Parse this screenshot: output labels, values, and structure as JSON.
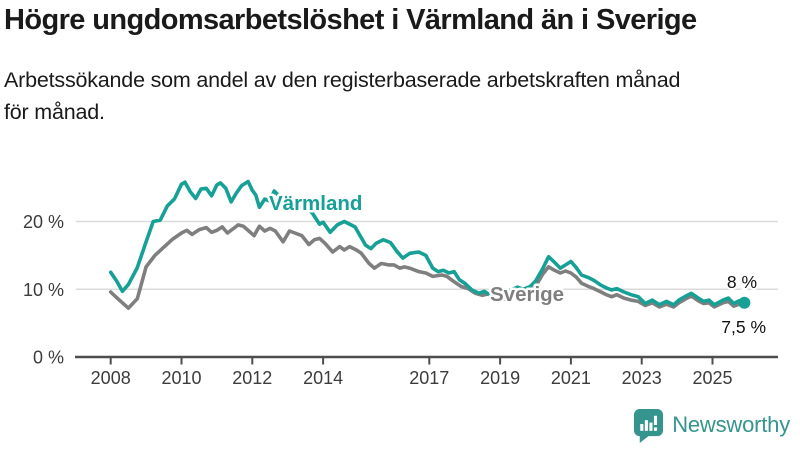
{
  "header": {
    "title": "Högre ungdomsarbetslöshet i Värmland än i Sverige",
    "subtitle": "Arbetssökande som andel av den registerbaserade arbetskraften månad\nför månad."
  },
  "chart_data": {
    "type": "line",
    "title": "Högre ungdomsarbetslöshet i Värmland än i Sverige",
    "subtitle": "Arbetssökande som andel av den registerbaserade arbetskraften månad för månad.",
    "xlabel": "",
    "ylabel": "",
    "grid": "horizontal-only",
    "legend_position": "inline-labels",
    "xlim": [
      2008,
      2026.9
    ],
    "ylim": [
      0,
      28.5
    ],
    "x_ticks": [
      "2008",
      "2010",
      "2012",
      "2014",
      "2017",
      "2019",
      "2021",
      "2023",
      "2025"
    ],
    "y_ticks": [
      {
        "label": "20 %",
        "value": 20
      },
      {
        "label": "10 %",
        "value": 10
      },
      {
        "label": "0 %",
        "value": 0
      }
    ],
    "series": [
      {
        "name": "Sverige",
        "color": "#7F7F7F",
        "end_annotation": "7,5 %",
        "end_dot": false,
        "points": [
          [
            2008.0,
            9.6
          ],
          [
            2008.2,
            8.6
          ],
          [
            2008.5,
            7.2
          ],
          [
            2008.75,
            8.6
          ],
          [
            2009.0,
            13.3
          ],
          [
            2009.25,
            15.0
          ],
          [
            2009.5,
            16.2
          ],
          [
            2009.75,
            17.4
          ],
          [
            2010.0,
            18.3
          ],
          [
            2010.15,
            18.7
          ],
          [
            2010.3,
            18.1
          ],
          [
            2010.5,
            18.8
          ],
          [
            2010.7,
            19.1
          ],
          [
            2010.85,
            18.4
          ],
          [
            2011.0,
            18.7
          ],
          [
            2011.15,
            19.2
          ],
          [
            2011.3,
            18.3
          ],
          [
            2011.45,
            18.9
          ],
          [
            2011.6,
            19.5
          ],
          [
            2011.75,
            19.3
          ],
          [
            2011.9,
            18.6
          ],
          [
            2012.05,
            17.9
          ],
          [
            2012.2,
            19.3
          ],
          [
            2012.35,
            18.6
          ],
          [
            2012.5,
            19.0
          ],
          [
            2012.65,
            18.6
          ],
          [
            2012.87,
            17.0
          ],
          [
            2013.05,
            18.6
          ],
          [
            2013.2,
            18.3
          ],
          [
            2013.4,
            17.9
          ],
          [
            2013.6,
            16.6
          ],
          [
            2013.75,
            17.3
          ],
          [
            2013.9,
            17.5
          ],
          [
            2014.05,
            16.8
          ],
          [
            2014.27,
            15.5
          ],
          [
            2014.47,
            16.3
          ],
          [
            2014.6,
            15.8
          ],
          [
            2014.75,
            16.3
          ],
          [
            2014.94,
            15.8
          ],
          [
            2015.08,
            15.3
          ],
          [
            2015.3,
            13.8
          ],
          [
            2015.45,
            13.1
          ],
          [
            2015.64,
            13.8
          ],
          [
            2015.85,
            13.6
          ],
          [
            2016.0,
            13.6
          ],
          [
            2016.17,
            13.1
          ],
          [
            2016.3,
            13.3
          ],
          [
            2016.45,
            13.1
          ],
          [
            2016.7,
            12.6
          ],
          [
            2016.9,
            12.4
          ],
          [
            2017.1,
            11.9
          ],
          [
            2017.35,
            12.1
          ],
          [
            2017.5,
            11.9
          ],
          [
            2017.7,
            11.1
          ],
          [
            2017.9,
            10.4
          ],
          [
            2018.1,
            10.1
          ],
          [
            2018.3,
            9.4
          ],
          [
            2018.5,
            9.1
          ],
          [
            2018.65,
            9.3
          ],
          [
            2018.8,
            8.9
          ],
          [
            2019.0,
            8.7
          ],
          [
            2019.15,
            8.5
          ],
          [
            2019.3,
            9.0
          ],
          [
            2019.5,
            9.3
          ],
          [
            2019.65,
            9.1
          ],
          [
            2019.85,
            9.6
          ],
          [
            2020.0,
            10.4
          ],
          [
            2020.2,
            12.2
          ],
          [
            2020.37,
            13.3
          ],
          [
            2020.5,
            12.9
          ],
          [
            2020.7,
            12.4
          ],
          [
            2020.85,
            12.7
          ],
          [
            2021.0,
            12.4
          ],
          [
            2021.15,
            11.8
          ],
          [
            2021.3,
            10.9
          ],
          [
            2021.5,
            10.4
          ],
          [
            2021.65,
            10.1
          ],
          [
            2021.85,
            9.6
          ],
          [
            2022.0,
            9.2
          ],
          [
            2022.15,
            8.9
          ],
          [
            2022.3,
            9.2
          ],
          [
            2022.5,
            8.7
          ],
          [
            2022.7,
            8.4
          ],
          [
            2022.9,
            8.2
          ],
          [
            2023.1,
            7.6
          ],
          [
            2023.3,
            8.0
          ],
          [
            2023.5,
            7.4
          ],
          [
            2023.7,
            7.8
          ],
          [
            2023.9,
            7.4
          ],
          [
            2024.05,
            8.0
          ],
          [
            2024.25,
            8.6
          ],
          [
            2024.4,
            9.0
          ],
          [
            2024.6,
            8.3
          ],
          [
            2024.75,
            7.9
          ],
          [
            2024.9,
            8.0
          ],
          [
            2025.05,
            7.4
          ],
          [
            2025.3,
            8.0
          ],
          [
            2025.45,
            8.2
          ],
          [
            2025.6,
            7.5
          ],
          [
            2025.75,
            7.8
          ],
          [
            2025.9,
            7.5
          ]
        ]
      },
      {
        "name": "Värmland",
        "color": "#17A095",
        "end_annotation": "8 %",
        "end_dot": true,
        "points": [
          [
            2008.0,
            12.5
          ],
          [
            2008.17,
            11.2
          ],
          [
            2008.33,
            9.7
          ],
          [
            2008.5,
            10.7
          ],
          [
            2008.75,
            13.2
          ],
          [
            2009.0,
            17.0
          ],
          [
            2009.2,
            20.0
          ],
          [
            2009.4,
            20.2
          ],
          [
            2009.6,
            22.3
          ],
          [
            2009.8,
            23.3
          ],
          [
            2010.0,
            25.5
          ],
          [
            2010.1,
            25.8
          ],
          [
            2010.25,
            24.4
          ],
          [
            2010.4,
            23.4
          ],
          [
            2010.55,
            24.8
          ],
          [
            2010.7,
            24.9
          ],
          [
            2010.85,
            23.8
          ],
          [
            2011.0,
            25.4
          ],
          [
            2011.1,
            25.7
          ],
          [
            2011.25,
            24.9
          ],
          [
            2011.4,
            22.9
          ],
          [
            2011.55,
            24.2
          ],
          [
            2011.7,
            25.3
          ],
          [
            2011.88,
            25.9
          ],
          [
            2012.0,
            24.6
          ],
          [
            2012.1,
            23.9
          ],
          [
            2012.2,
            22.1
          ],
          [
            2012.35,
            23.3
          ],
          [
            2012.5,
            23.0
          ],
          [
            2012.62,
            24.5
          ],
          [
            2012.75,
            23.8
          ],
          [
            2012.9,
            21.8
          ],
          [
            2013.1,
            22.7
          ],
          [
            2013.3,
            21.9
          ],
          [
            2013.5,
            22.4
          ],
          [
            2013.7,
            21.2
          ],
          [
            2013.9,
            19.6
          ],
          [
            2014.0,
            19.9
          ],
          [
            2014.2,
            18.4
          ],
          [
            2014.4,
            19.5
          ],
          [
            2014.6,
            20.0
          ],
          [
            2014.9,
            19.2
          ],
          [
            2015.2,
            16.5
          ],
          [
            2015.35,
            16.0
          ],
          [
            2015.5,
            16.8
          ],
          [
            2015.7,
            17.3
          ],
          [
            2015.9,
            16.9
          ],
          [
            2016.1,
            15.5
          ],
          [
            2016.25,
            14.6
          ],
          [
            2016.45,
            15.3
          ],
          [
            2016.7,
            15.5
          ],
          [
            2016.9,
            15.0
          ],
          [
            2017.1,
            13.1
          ],
          [
            2017.25,
            12.6
          ],
          [
            2017.4,
            12.8
          ],
          [
            2017.55,
            12.4
          ],
          [
            2017.7,
            12.6
          ],
          [
            2017.85,
            11.4
          ],
          [
            2018.0,
            10.9
          ],
          [
            2018.2,
            9.9
          ],
          [
            2018.4,
            9.4
          ],
          [
            2018.55,
            9.7
          ],
          [
            2018.7,
            9.2
          ],
          [
            2018.85,
            9.6
          ],
          [
            2019.0,
            9.6
          ],
          [
            2019.15,
            9.3
          ],
          [
            2019.3,
            9.9
          ],
          [
            2019.5,
            10.3
          ],
          [
            2019.65,
            10.0
          ],
          [
            2019.85,
            10.4
          ],
          [
            2020.0,
            11.2
          ],
          [
            2020.2,
            13.0
          ],
          [
            2020.37,
            14.8
          ],
          [
            2020.55,
            13.9
          ],
          [
            2020.7,
            13.1
          ],
          [
            2020.85,
            13.6
          ],
          [
            2021.0,
            14.1
          ],
          [
            2021.15,
            13.2
          ],
          [
            2021.3,
            12.1
          ],
          [
            2021.5,
            11.7
          ],
          [
            2021.65,
            11.3
          ],
          [
            2021.85,
            10.6
          ],
          [
            2022.0,
            10.2
          ],
          [
            2022.15,
            9.9
          ],
          [
            2022.3,
            10.1
          ],
          [
            2022.5,
            9.6
          ],
          [
            2022.7,
            9.2
          ],
          [
            2022.9,
            8.9
          ],
          [
            2023.1,
            7.9
          ],
          [
            2023.3,
            8.4
          ],
          [
            2023.5,
            7.7
          ],
          [
            2023.7,
            8.2
          ],
          [
            2023.9,
            7.7
          ],
          [
            2024.05,
            8.4
          ],
          [
            2024.25,
            9.0
          ],
          [
            2024.4,
            9.4
          ],
          [
            2024.6,
            8.7
          ],
          [
            2024.75,
            8.2
          ],
          [
            2024.9,
            8.4
          ],
          [
            2025.05,
            7.7
          ],
          [
            2025.3,
            8.4
          ],
          [
            2025.45,
            8.7
          ],
          [
            2025.6,
            7.9
          ],
          [
            2025.75,
            8.3
          ],
          [
            2025.9,
            8.0
          ]
        ]
      }
    ]
  },
  "footer": {
    "brand": "Newsworthy",
    "brand_color": "#35948D",
    "logo_icon": "bar-chart-speech-bubble-icon"
  }
}
